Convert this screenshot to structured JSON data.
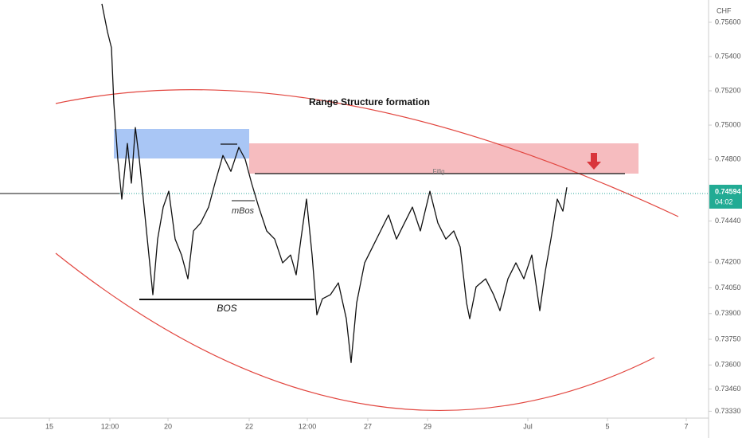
{
  "chart_data": {
    "type": "line",
    "title": "Range Structure formation",
    "annotations": {
      "mbos": "mBos",
      "bos": "BOS",
      "fib": "Fifig"
    },
    "currency": "CHF",
    "last_price_label": "0.74594",
    "countdown": "04:02",
    "xlim": [
      0,
      890
    ],
    "ylim": [
      0.7329,
      0.7573
    ],
    "xticks": [
      {
        "value": 62,
        "label": "15"
      },
      {
        "value": 138,
        "label": "12:00"
      },
      {
        "value": 211,
        "label": "20"
      },
      {
        "value": 313,
        "label": "22"
      },
      {
        "value": 386,
        "label": "12:00"
      },
      {
        "value": 462,
        "label": "27"
      },
      {
        "value": 537,
        "label": "29"
      },
      {
        "value": 663,
        "label": "Jul"
      },
      {
        "value": 763,
        "label": "5"
      },
      {
        "value": 862,
        "label": "7"
      }
    ],
    "yticks": [
      {
        "value": 0.756,
        "label": "0.75600"
      },
      {
        "value": 0.754,
        "label": "0.75400"
      },
      {
        "value": 0.752,
        "label": "0.75200"
      },
      {
        "value": 0.75,
        "label": "0.75000"
      },
      {
        "value": 0.748,
        "label": "0.74800"
      },
      {
        "value": 0.7444,
        "label": "0.74440"
      },
      {
        "value": 0.742,
        "label": "0.74200"
      },
      {
        "value": 0.7405,
        "label": "0.74050"
      },
      {
        "value": 0.739,
        "label": "0.73900"
      },
      {
        "value": 0.7375,
        "label": "0.73750"
      },
      {
        "value": 0.736,
        "label": "0.73600"
      },
      {
        "value": 0.7346,
        "label": "0.73460"
      },
      {
        "value": 0.7333,
        "label": "0.73330"
      }
    ],
    "series": [
      {
        "name": "CHF",
        "color": "#111111",
        "x": [
          128,
          135,
          140,
          143,
          148,
          153,
          160,
          165,
          170,
          175,
          180,
          188,
          192,
          198,
          205,
          212,
          220,
          228,
          236,
          243,
          252,
          262,
          270,
          280,
          290,
          300,
          308,
          316,
          325,
          335,
          345,
          355,
          365,
          372,
          378,
          385,
          392,
          398,
          405,
          415,
          425,
          435,
          441,
          448,
          458,
          468,
          478,
          488,
          498,
          508,
          518,
          528,
          540,
          550,
          560,
          570,
          578,
          586,
          590,
          598,
          610,
          620,
          628,
          638,
          648,
          658,
          668,
          678,
          685,
          692,
          700,
          707,
          712
        ],
        "values": [
          0.75707,
          0.75544,
          0.75451,
          0.75126,
          0.748,
          0.74568,
          0.74893,
          0.74661,
          0.74986,
          0.748,
          0.74568,
          0.74196,
          0.7401,
          0.74335,
          0.74521,
          0.74614,
          0.74335,
          0.74242,
          0.74103,
          0.74382,
          0.74428,
          0.74521,
          0.74661,
          0.74823,
          0.7473,
          0.7487,
          0.748,
          0.74661,
          0.74521,
          0.74382,
          0.74335,
          0.74196,
          0.74242,
          0.74126,
          0.74335,
          0.74568,
          0.74242,
          0.73893,
          0.73986,
          0.7401,
          0.74079,
          0.7387,
          0.73614,
          0.73963,
          0.74196,
          0.74289,
          0.74382,
          0.74475,
          0.74335,
          0.74428,
          0.74521,
          0.74382,
          0.74614,
          0.74428,
          0.74335,
          0.74382,
          0.74289,
          0.73963,
          0.7387,
          0.74056,
          0.74103,
          0.7401,
          0.73917,
          0.74103,
          0.74196,
          0.74103,
          0.74242,
          0.73917,
          0.74149,
          0.74335,
          0.74568,
          0.74498,
          0.74637
        ]
      }
    ]
  }
}
